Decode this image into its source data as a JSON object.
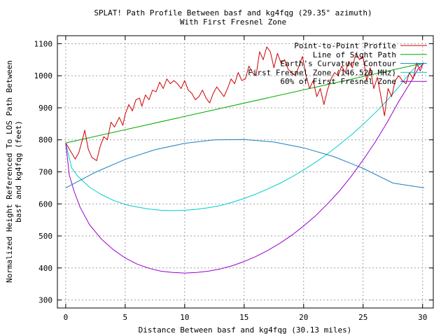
{
  "chart_data": {
    "type": "line",
    "title": "SPLAT! Path Profile Between basf and kg4fqg (29.35° azimuth)",
    "subtitle": "With First Fresnel Zone",
    "xlabel": "Distance Between basf and kg4fqg (30.13 miles)",
    "ylabel_line1": "Normalized Height Referenced To LOS Path Between",
    "ylabel_line2": "basf and kg4fqg (feet)",
    "xlim": [
      -0.7,
      30.9
    ],
    "ylim": [
      275,
      1125
    ],
    "x_ticks": [
      0,
      5,
      10,
      15,
      20,
      25,
      30
    ],
    "x_tick_labels": [
      "0",
      "5",
      "10",
      "15",
      "20",
      "25",
      "30"
    ],
    "y_ticks": [
      300,
      400,
      500,
      600,
      700,
      800,
      900,
      1000,
      1100
    ],
    "y_tick_labels": [
      "300",
      "400",
      "500",
      "600",
      "700",
      "800",
      "900",
      "1000",
      "1100"
    ],
    "grid": true,
    "legend_position": "top-right",
    "series": [
      {
        "name": "Point-to-Point Profile",
        "color": "#cc0000",
        "x": [
          0,
          0.4,
          0.8,
          1.1,
          1.4,
          1.6,
          1.9,
          2.2,
          2.6,
          2.9,
          3.2,
          3.5,
          3.8,
          4.1,
          4.5,
          4.8,
          5.0,
          5.3,
          5.6,
          5.9,
          6.2,
          6.4,
          6.7,
          7.0,
          7.3,
          7.6,
          7.9,
          8.2,
          8.5,
          8.8,
          9.1,
          9.4,
          9.7,
          10.0,
          10.3,
          10.6,
          10.9,
          11.2,
          11.5,
          11.8,
          12.1,
          12.4,
          12.7,
          13.0,
          13.3,
          13.6,
          13.9,
          14.2,
          14.5,
          14.8,
          15.1,
          15.4,
          15.7,
          16.0,
          16.3,
          16.6,
          16.9,
          17.2,
          17.5,
          17.8,
          18.1,
          18.4,
          18.7,
          19.0,
          19.3,
          19.6,
          19.9,
          20.2,
          20.5,
          20.8,
          21.1,
          21.4,
          21.7,
          22.0,
          22.3,
          22.6,
          22.9,
          23.2,
          23.5,
          23.8,
          24.1,
          24.4,
          24.7,
          25.0,
          25.3,
          25.6,
          25.9,
          26.2,
          26.5,
          26.8,
          27.1,
          27.4,
          27.7,
          28.0,
          28.3,
          28.6,
          28.9,
          29.2,
          29.5,
          29.8,
          30.0
        ],
        "y": [
          790,
          765,
          740,
          760,
          800,
          830,
          770,
          745,
          735,
          780,
          810,
          800,
          855,
          840,
          870,
          845,
          880,
          910,
          890,
          925,
          930,
          905,
          940,
          925,
          955,
          950,
          980,
          960,
          990,
          975,
          985,
          975,
          960,
          985,
          955,
          945,
          925,
          935,
          955,
          930,
          915,
          945,
          965,
          950,
          935,
          960,
          990,
          975,
          1010,
          985,
          990,
          1030,
          1010,
          1000,
          1075,
          1050,
          1090,
          1075,
          1025,
          1070,
          1040,
          1050,
          1020,
          1010,
          1000,
          1030,
          1060,
          1000,
          960,
          985,
          935,
          960,
          910,
          955,
          990,
          1010,
          1000,
          1030,
          1010,
          1045,
          1025,
          1070,
          1050,
          1060,
          985,
          1025,
          960,
          995,
          935,
          875,
          960,
          935,
          985,
          1000,
          985,
          975,
          1010,
          990,
          1040,
          1015,
          1035
        ]
      },
      {
        "name": "Line of Sight Path",
        "color": "#00aa00",
        "x": [
          0,
          30.13
        ],
        "y": [
          790,
          1040
        ]
      },
      {
        "name": "Earth's Curvature Contour",
        "color": "#1a7fc0",
        "x": [
          0,
          2.5,
          5,
          7.5,
          10,
          12.5,
          15,
          17.5,
          20,
          22.5,
          25,
          27.5,
          30.13
        ],
        "y": [
          650,
          699,
          739,
          769,
          789,
          800,
          801,
          793,
          775,
          748,
          711,
          665,
          650
        ]
      },
      {
        "name": "First Fresnel Zone (146.520 MHz)",
        "color": "#00cccc",
        "x": [
          0,
          0.5,
          1,
          2,
          3,
          4,
          5,
          6,
          7,
          8,
          9,
          10,
          11,
          12,
          13,
          14,
          15,
          16,
          17,
          18,
          19,
          20,
          21,
          22,
          23,
          24,
          25,
          26,
          27,
          28,
          29,
          29.5,
          30.13
        ],
        "y": [
          790,
          712,
          687,
          652,
          629,
          611,
          598,
          590,
          584,
          580,
          579,
          580,
          583,
          588,
          595,
          605,
          617,
          631,
          647,
          664,
          684,
          706,
          730,
          756,
          785,
          815,
          848,
          884,
          922,
          965,
          1012,
          1030,
          1040
        ]
      },
      {
        "name": "60% of First Fresnel Zone",
        "color": "#9900cc",
        "x": [
          0,
          0.3,
          0.7,
          1.2,
          2,
          3,
          4,
          5,
          6,
          7,
          8,
          9,
          10,
          11,
          12,
          13,
          14,
          15,
          16,
          17,
          18,
          19,
          20,
          21,
          22,
          23,
          24,
          25,
          26,
          27,
          28,
          29,
          29.6,
          30.13
        ],
        "y": [
          790,
          690,
          640,
          590,
          535,
          490,
          457,
          431,
          412,
          399,
          390,
          386,
          384,
          386,
          390,
          397,
          407,
          420,
          436,
          455,
          477,
          502,
          531,
          563,
          600,
          640,
          686,
          737,
          792,
          853,
          920,
          980,
          1020,
          1040
        ]
      }
    ]
  }
}
